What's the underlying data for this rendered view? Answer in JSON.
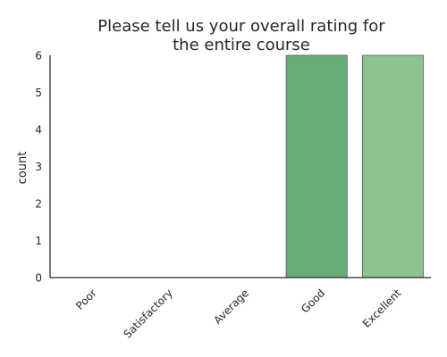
{
  "chart_data": {
    "type": "bar",
    "title": [
      "Please tell us your overall rating for",
      "the entire course"
    ],
    "categories": [
      "Poor",
      "Satisfactory",
      "Average",
      "Good",
      "Excellent"
    ],
    "values": [
      0,
      0,
      0,
      6,
      6
    ],
    "colors": [
      "#7fc97f",
      "#7fc97f",
      "#7fc97f",
      "#68ab78",
      "#8dc38f"
    ],
    "xlabel": "",
    "ylabel": "count",
    "ylim": [
      0,
      6
    ],
    "yticks": [
      "0",
      "1",
      "2",
      "3",
      "4",
      "5",
      "6"
    ],
    "grid": false
  }
}
